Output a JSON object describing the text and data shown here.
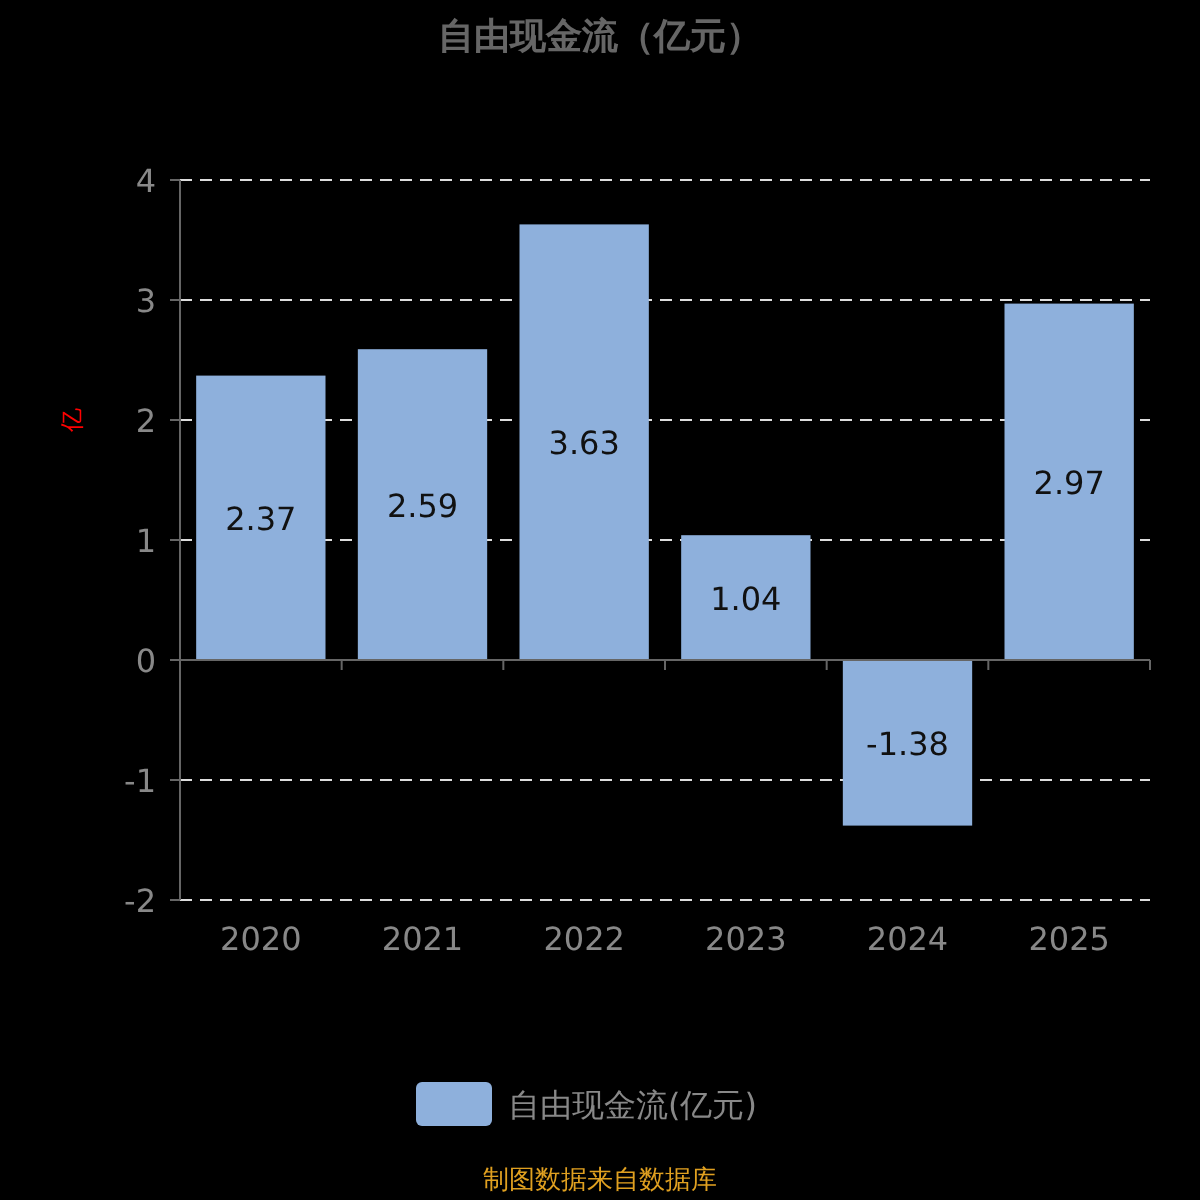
{
  "chart_data": {
    "type": "bar",
    "title": "自由现金流（亿元）",
    "ylabel": "亿",
    "categories": [
      "2020",
      "2021",
      "2022",
      "2023",
      "2024",
      "2025"
    ],
    "series": [
      {
        "name": "自由现金流(亿元)",
        "color": "#8eb0dc",
        "values": [
          2.37,
          2.59,
          3.63,
          1.04,
          -1.38,
          2.97
        ]
      }
    ],
    "ylim": [
      -2,
      4
    ],
    "yticks": [
      -2,
      -1,
      0,
      1,
      2,
      3,
      4
    ],
    "grid": "y",
    "legend": "bottom",
    "data_labels": true,
    "annotations": [
      "制图数据来自数据库"
    ]
  }
}
